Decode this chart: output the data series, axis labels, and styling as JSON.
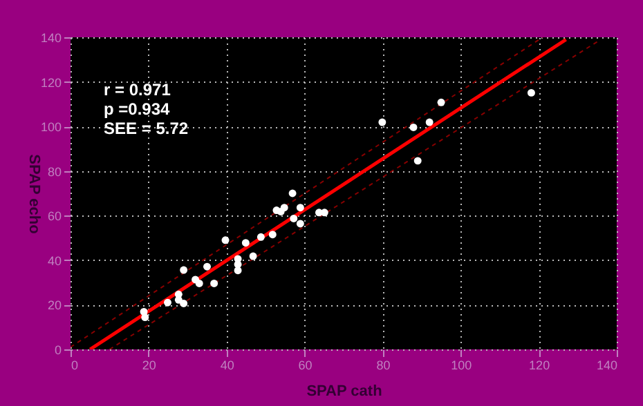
{
  "chart_data": {
    "type": "scatter",
    "xlabel": "SPAP cath",
    "ylabel": "SPAP echo",
    "xlim": [
      0,
      140
    ],
    "ylim": [
      0,
      140
    ],
    "xticks": [
      0,
      20,
      40,
      60,
      80,
      100,
      120,
      140
    ],
    "yticks": [
      0,
      20,
      40,
      60,
      80,
      100,
      120,
      140
    ],
    "grid": true,
    "annotations": [
      "r = 0.971",
      "p =0.934",
      "SEE = 5.72"
    ],
    "series": [
      {
        "type": "line",
        "color": "#880000",
        "line_style": "dashed",
        "x": [
          0,
          121
        ],
        "values": [
          1,
          140
        ]
      },
      {
        "type": "line",
        "color": "#880000",
        "line_style": "dashed",
        "x": [
          10,
          135
        ],
        "values": [
          0,
          138
        ]
      },
      {
        "type": "line",
        "color": "#ff0000",
        "line_style": "solid",
        "x": [
          5,
          127
        ],
        "values": [
          0,
          139
        ]
      },
      {
        "color": "#ffffff",
        "marker": "circle",
        "x": [
          18.8,
          19.1,
          24.9,
          27.7,
          27.7,
          29,
          29,
          32,
          33,
          35,
          36.8,
          39.7,
          42.9,
          42.9,
          42.9,
          44.9,
          46.8,
          48.8,
          51.8,
          52.8,
          53.9,
          54.8,
          56.9,
          57.2,
          58.9,
          58.9,
          63.7,
          65.1,
          79.9,
          87.9,
          89,
          92,
          95,
          118.1
        ],
        "values": [
          16.9,
          14.4,
          21,
          24.7,
          22.2,
          20.6,
          35.6,
          31.3,
          29.6,
          37.1,
          29.6,
          49,
          40.6,
          38.1,
          35.4,
          47.8,
          41.8,
          50.4,
          51.5,
          62.4,
          61.8,
          63.6,
          70,
          58.7,
          63.6,
          56.4,
          61.4,
          61.4,
          101.9,
          99.6,
          84.6,
          101.9,
          110.8,
          115.1
        ]
      }
    ]
  }
}
